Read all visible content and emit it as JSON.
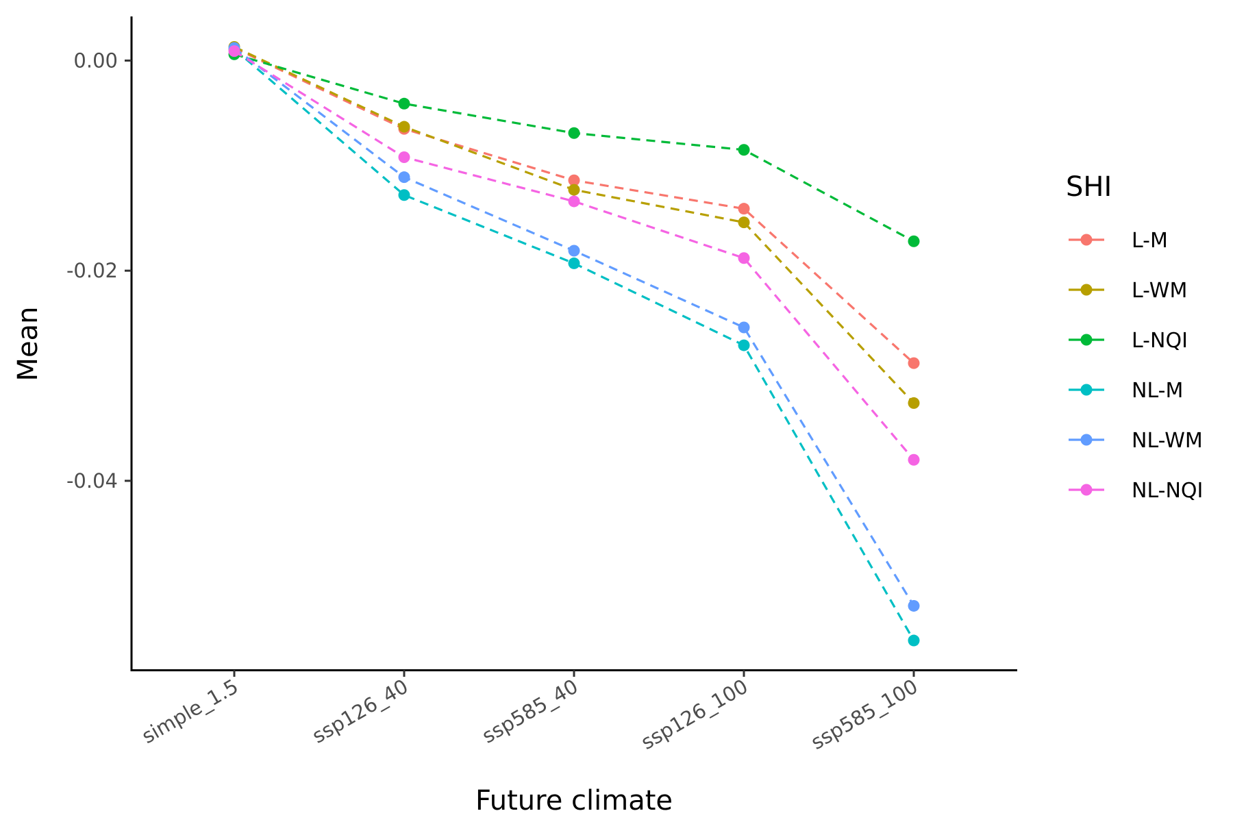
{
  "chart_data": {
    "type": "line",
    "xlabel": "Future climate",
    "ylabel": "Mean",
    "categories": [
      "simple_1.5",
      "ssp126_40",
      "ssp585_40",
      "ssp126_100",
      "ssp585_100"
    ],
    "ylim": [
      -0.058,
      0.0042
    ],
    "yticks": [
      {
        "value": 0.0,
        "label": "0.00"
      },
      {
        "value": -0.02,
        "label": "-0.02"
      },
      {
        "value": -0.04,
        "label": "-0.04"
      }
    ],
    "grid": false,
    "legend": {
      "title": "SHI",
      "placement": "right"
    },
    "series": [
      {
        "name": "L-M",
        "color": "#F8766D",
        "values": [
          0.0012,
          -0.0065,
          -0.0114,
          -0.0141,
          -0.0288
        ]
      },
      {
        "name": "L-WM",
        "color": "#B79F00",
        "values": [
          0.0013,
          -0.0063,
          -0.0123,
          -0.0154,
          -0.0326
        ]
      },
      {
        "name": "L-NQI",
        "color": "#00BA38",
        "values": [
          0.0006,
          -0.0041,
          -0.0069,
          -0.0085,
          -0.0172
        ]
      },
      {
        "name": "NL-M",
        "color": "#00BFC4",
        "values": [
          0.0011,
          -0.0128,
          -0.0193,
          -0.0271,
          -0.0552
        ]
      },
      {
        "name": "NL-WM",
        "color": "#619CFF",
        "values": [
          0.0012,
          -0.0111,
          -0.0181,
          -0.0254,
          -0.0519
        ]
      },
      {
        "name": "NL-NQI",
        "color": "#F564E3",
        "values": [
          0.0009,
          -0.0092,
          -0.0134,
          -0.0188,
          -0.038
        ]
      }
    ]
  }
}
